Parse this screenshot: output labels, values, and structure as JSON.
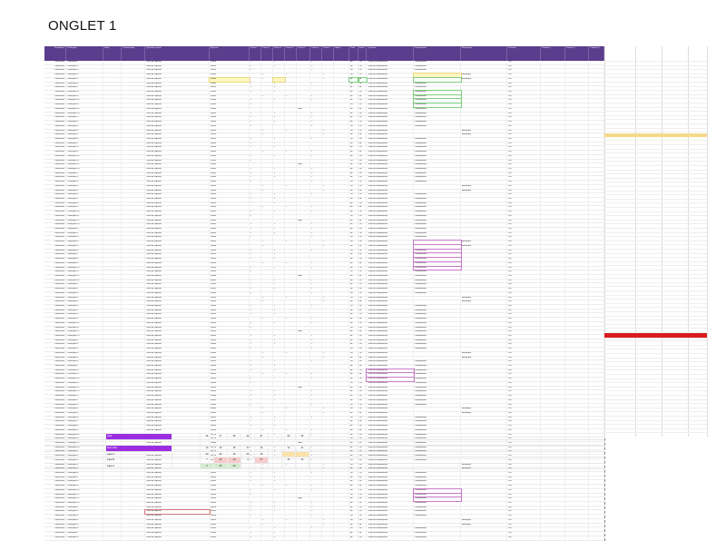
{
  "page": {
    "title": "ONGLET 1"
  },
  "colors": {
    "header_bg": "#5a3d8c",
    "highlight_yellow": "#f5d98a",
    "highlight_red": "#d91c1c",
    "summary_purple": "#9b2fe0",
    "cell_pink": "#f6cccc",
    "cell_green": "#d6ebcf",
    "cell_orange": "#fbe3a8"
  },
  "table": {
    "headers": [
      "Horodateur",
      "Participant",
      "Autre",
      "Commentaire",
      "Question ouverte",
      "Reponse",
      "Critere 1",
      "Critere 2",
      "Critere 3",
      "Critere 4",
      "Critere 5",
      "Critere 6",
      "Critere 7",
      "Autres",
      "Code",
      "Statut",
      "Question",
      "Commentaire",
      "Remarques",
      "Decision",
      "Colonne 1",
      "Colonne 2",
      "Colonne 3"
    ],
    "rows": [
      [
        "Date/heure",
        "Participant 1",
        "",
        "",
        "Texte de réponse",
        "Valeur",
        "1",
        "",
        "1",
        "",
        "",
        "1",
        "",
        "",
        "nb",
        "OK",
        "Texte de commentaire",
        "Commentaire",
        "",
        "Oui",
        "",
        "",
        ""
      ],
      [
        "Date/heure",
        "Participant 2",
        "",
        "",
        "Texte de réponse",
        "Valeur",
        "1",
        "",
        "1",
        "",
        "",
        "1",
        "",
        "",
        "nb",
        "OK",
        "Texte de commentaire",
        "Commentaire",
        "",
        "Oui",
        "",
        "",
        ""
      ],
      [
        "Date/heure",
        "Participant 3",
        "",
        "",
        "Texte de réponse",
        "Valeur",
        "2",
        "",
        "",
        "",
        "",
        "1",
        "",
        "",
        "OK",
        "OK",
        "Texte de commentaire",
        "Commentaire",
        "",
        "Oui",
        "",
        "",
        ""
      ],
      [
        "Date/heure",
        "Participant 4",
        "",
        "",
        "Texte de réponse",
        "Valeur",
        "",
        "1",
        "",
        "1",
        "",
        "",
        "1",
        "",
        "OK",
        "OK",
        "Texte de commentaire",
        "",
        "Remarque",
        "Oui",
        "",
        "",
        ""
      ],
      [
        "Date/heure",
        "Participant 5",
        "",
        "",
        "Texte de réponse",
        "Valeur",
        "",
        "2",
        "",
        "",
        "",
        "",
        "1",
        "",
        "nb",
        "nb",
        "Texte de commentaire",
        "",
        "Remarque",
        "Oui",
        "",
        "",
        ""
      ],
      [
        "Date/heure",
        "Participant 6",
        "",
        "",
        "Texte de réponse",
        "Valeur",
        "1",
        "",
        "1",
        "",
        "",
        "1",
        "",
        "",
        "OK",
        "OK",
        "Texte de commentaire",
        "Commentaire",
        "",
        "Oui",
        "",
        "",
        ""
      ],
      [
        "Date/heure",
        "Participant 7",
        "",
        "",
        "Texte de réponse",
        "Valeur",
        "1",
        "",
        "1",
        "",
        "",
        "",
        "",
        "",
        "nb",
        "nb",
        "Texte de commentaire",
        "Commentaire",
        "",
        "Oui",
        "",
        "",
        ""
      ],
      [
        "Date/heure",
        "Participant 8",
        "",
        "",
        "Texte de réponse",
        "Valeur",
        "1",
        "",
        "1",
        "",
        "",
        "",
        "",
        "",
        "nb",
        "OK",
        "Texte de commentaire",
        "Commentaire",
        "",
        "Oui",
        "",
        "",
        ""
      ],
      [
        "Date/heure",
        "Participant 9",
        "",
        "",
        "Texte de réponse",
        "Valeur",
        "",
        "1",
        "",
        "1",
        "",
        "1",
        "",
        "",
        "nb",
        "nb",
        "Texte de commentaire",
        "Commentaire",
        "",
        "Oui",
        "",
        "",
        ""
      ],
      [
        "Date/heure",
        "Participant 10",
        "",
        "",
        "Texte de réponse",
        "Valeur",
        "1",
        "",
        "1",
        "",
        "",
        "1",
        "",
        "",
        "nb",
        "OK",
        "Texte de commentaire",
        "Commentaire",
        "",
        "Oui",
        "",
        "",
        ""
      ],
      [
        "Date/heure",
        "Participant 11",
        "",
        "",
        "Texte de réponse",
        "Valeur",
        "2",
        "",
        "",
        "",
        "",
        "",
        "",
        "",
        "OK",
        "OK",
        "Texte de commentaire",
        "Commentaire",
        "",
        "Oui",
        "",
        "",
        ""
      ],
      [
        "Date/heure",
        "Participant 12",
        "",
        "",
        "Texte de réponse",
        "Valeur",
        "",
        "",
        "",
        "",
        "Note",
        "",
        "",
        "",
        "nb",
        "nb",
        "Texte de commentaire",
        "Commentaire",
        "",
        "Oui",
        "",
        "",
        ""
      ],
      [
        "Date/heure",
        "Participant 13",
        "",
        "",
        "Texte de réponse",
        "Valeur",
        "1",
        "",
        "1",
        "",
        "",
        "1",
        "",
        "",
        "nb",
        "OK",
        "Texte de commentaire",
        "Commentaire",
        "",
        "Oui",
        "",
        "",
        ""
      ]
    ],
    "row_count_total": 112
  },
  "summary": {
    "rows": [
      {
        "label": "Total",
        "values": [
          "26",
          "47",
          "38",
          "40",
          "37",
          "",
          "50",
          "35"
        ],
        "style": "purple"
      },
      {
        "label": "",
        "values": [],
        "style": ""
      },
      {
        "label": "Sous-total",
        "values": [
          "10",
          "16",
          "18",
          "27",
          "16",
          "",
          "12",
          "21"
        ],
        "style": "purple"
      },
      {
        "label": "Ligne A",
        "values": [
          "20",
          "26",
          "15",
          "23",
          "13",
          "",
          "",
          ""
        ],
        "style": ""
      },
      {
        "label": "Ligne B",
        "values": [
          "7",
          "40",
          "-10",
          "4",
          "27",
          "",
          "40",
          "40"
        ],
        "style": ""
      },
      {
        "label": "Ligne C",
        "values": [
          "2",
          "25",
          "20",
          "",
          "",
          "",
          "",
          ""
        ],
        "style": ""
      }
    ]
  }
}
